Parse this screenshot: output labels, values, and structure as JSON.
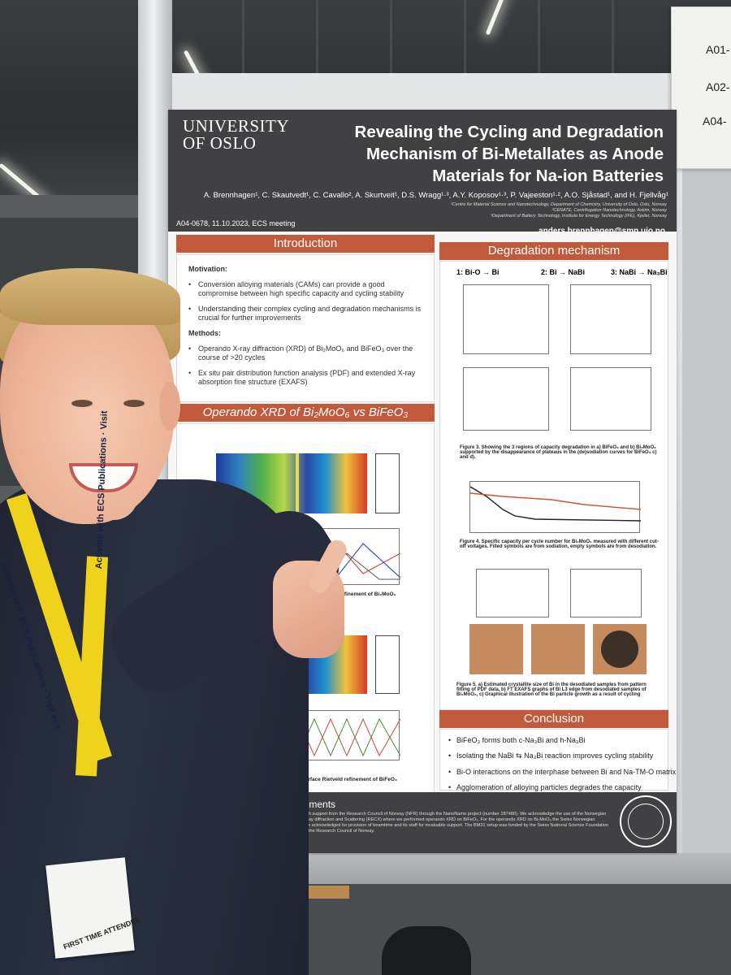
{
  "side_sign": {
    "line1": "A01-",
    "line2": "A02-",
    "line3": "A04-"
  },
  "poster": {
    "logo": [
      "UNIVERSITY",
      "OF OSLO"
    ],
    "title": "Revealing the Cycling and Degradation Mechanism of Bi-Metallates as Anode Materials for Na-ion Batteries",
    "authors": "A. Brennhagen¹, C. Skautvedt¹, C. Cavallo², A. Skurtveit¹, D.S. Wragg¹·³, A.Y. Koposov¹·³, P. Vajeeston¹·², A.O. Sjåstad¹, and H. Fjellvåg¹",
    "affiliations": [
      "¹Centre for Material Science and Nanotechnology, Department of Chemistry, University of Oslo, Oslo, Norway",
      "²CENATE, Centrifugation Nanotechnology, Askim, Norway",
      "³Department of Battery Technology, Institute for Energy Technology (IFE), Kjeller, Norway"
    ],
    "meta": "A04-0678, 11.10.2023, ECS meeting",
    "email": "anders.brennhagen@smn.uio.no",
    "introduction": {
      "heading": "Introduction",
      "motivation_label": "Motivation:",
      "motivation": [
        "Conversion alloying materials (CAMs) can provide a good compromise between high specific capacity and cycling stability",
        "Understanding their complex cycling and degradation mechanisms is crucial for further improvements"
      ],
      "methods_label": "Methods:",
      "methods": [
        "Operando X-ray diffraction (XRD) of Bi₂MoO₆ and BiFeO₃ over the course of >20 cycles",
        "Ex situ pair distribution function analysis (PDF) and extended X-ray absorption fine structure (EXAFS)"
      ]
    },
    "operando": {
      "heading": "Operando XRD of Bi₂MoO₆ vs BiFeO₃",
      "fig1_caption": "Figure 1. Operando XRD with surface Rietveld refinement of Bi₂MoO₆",
      "fig2_caption": "Figure 2. Operando XRD with surface Rietveld refinement of BiFeO₃"
    },
    "degradation": {
      "heading": "Degradation mechanism",
      "regions": [
        "1: Bi-O → Bi",
        "2: Bi → NaBi",
        "3: NaBi → Na₃Bi"
      ],
      "fig3_caption": "Figure 3. Showing the 3 regions of capacity degradation in a) BiFeO₃ and b) Bi₂MoO₆ supported by the disappearance of plateaus in the (de)sodiation curves for BiFeO₃ c) and d).",
      "fig4_caption": "Figure 4. Specific capacity per cycle number for Bi₂MoO₆ measured with different cut-off voltages. Filled symbols are from sodiation, empty symbols are from desodiation.",
      "fig5_caption": "Figure 5. a) Estimated crystallite size of Bi in the desodiated samples from pattern fitting of PDF data, b) FT EXAFS graphs of Bi L3 edge from desodiated samples of Bi₂MoO₆, c) Graphical illustration of the Bi particle growth as a result of cycling"
    },
    "conclusion": {
      "heading": "Conclusion",
      "items": [
        "BiFeO₃ forms both c-Na₃Bi and h-Na₃Bi",
        "Isolating the NaBi ⇆ Na₃Bi reaction improves cycling stability",
        "Bi-O interactions on the interphase between Bi and Na-TM-O matrix",
        "Agglomeration of alloying particles degrades the capacity"
      ]
    },
    "acknowledgements": {
      "heading": "Acknowledgements",
      "text": "This work was performed with support from the Research Council of Norway (NFR) through the NanoName project (number 287480). We acknowledge the use of the Norwegian national infrastructure for X-ray diffraction and Scattering (RECX) where we performed operando XRD on BiFeO₃. For the operando XRD on Bi₂MoO₆ the Swiss Norwegian beamlines (SNBL, ESRF) are acknowledged for provision of beamtime and its staff for invaluable support. The BM31 setup was funded by the Swiss National Science Foundation (grant 206021_189629) and the Research Council of Norway."
    }
  },
  "lanyard": {
    "strap_left": "Activate with ECS Publications · Visit ecs",
    "strap_right": "Activate with ECS Publications · Visit"
  },
  "badge": {
    "ribbon": "FIRST TIME ATTENDEE"
  }
}
